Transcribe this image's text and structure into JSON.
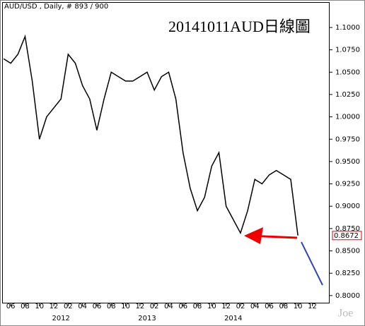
{
  "chart_data": {
    "type": "line",
    "header": "AUD/USD , Daily, # 893 / 900",
    "title": "20141011AUD日線圖",
    "watermark": "Joe",
    "categories": [
      null,
      "06",
      null,
      "08",
      null,
      "10",
      null,
      "12",
      null,
      "02",
      null,
      "04",
      null,
      "06",
      null,
      "08",
      null,
      "10",
      null,
      "12",
      null,
      "02",
      null,
      "04",
      null,
      "06",
      null,
      "08",
      null,
      "10",
      null,
      "12",
      null,
      "02",
      null,
      "04",
      null,
      "06",
      null,
      "08",
      null,
      "10",
      null,
      "12"
    ],
    "years": [
      {
        "value": 8,
        "label": "2012"
      },
      {
        "value": 20,
        "label": "2013"
      },
      {
        "value": 32,
        "label": "2014"
      }
    ],
    "values": [
      1.065,
      1.06,
      1.07,
      1.09,
      1.04,
      0.975,
      1.0,
      1.01,
      1.02,
      1.07,
      1.06,
      1.035,
      1.02,
      0.985,
      1.02,
      1.05,
      1.045,
      1.04,
      1.04,
      1.045,
      1.05,
      1.03,
      1.045,
      1.05,
      1.02,
      0.96,
      0.92,
      0.895,
      0.91,
      0.945,
      0.96,
      0.9,
      0.885,
      0.87,
      0.895,
      0.93,
      0.925,
      0.935,
      0.94,
      0.935,
      0.93,
      0.8672,
      null,
      null
    ],
    "color": "#000000",
    "last_value": 0.8672,
    "ylim": [
      0.792,
      1.1276
    ],
    "yticks": [
      {
        "value": 0.8,
        "label": "0.8000"
      },
      {
        "value": 0.825,
        "label": "0.8250"
      },
      {
        "value": 0.85,
        "label": "0.8500"
      },
      {
        "value": 0.875,
        "label": "0.8750"
      },
      {
        "value": 0.9,
        "label": "0.9000"
      },
      {
        "value": 0.925,
        "label": "0.9250"
      },
      {
        "value": 0.95,
        "label": "0.9500"
      },
      {
        "value": 0.975,
        "label": "0.9750"
      },
      {
        "value": 1.0,
        "label": "1.0000"
      },
      {
        "value": 1.025,
        "label": "1.0250"
      },
      {
        "value": 1.05,
        "label": "1.0500"
      },
      {
        "value": 1.075,
        "label": "1.0750"
      },
      {
        "value": 1.1,
        "label": "1.1000"
      }
    ]
  }
}
